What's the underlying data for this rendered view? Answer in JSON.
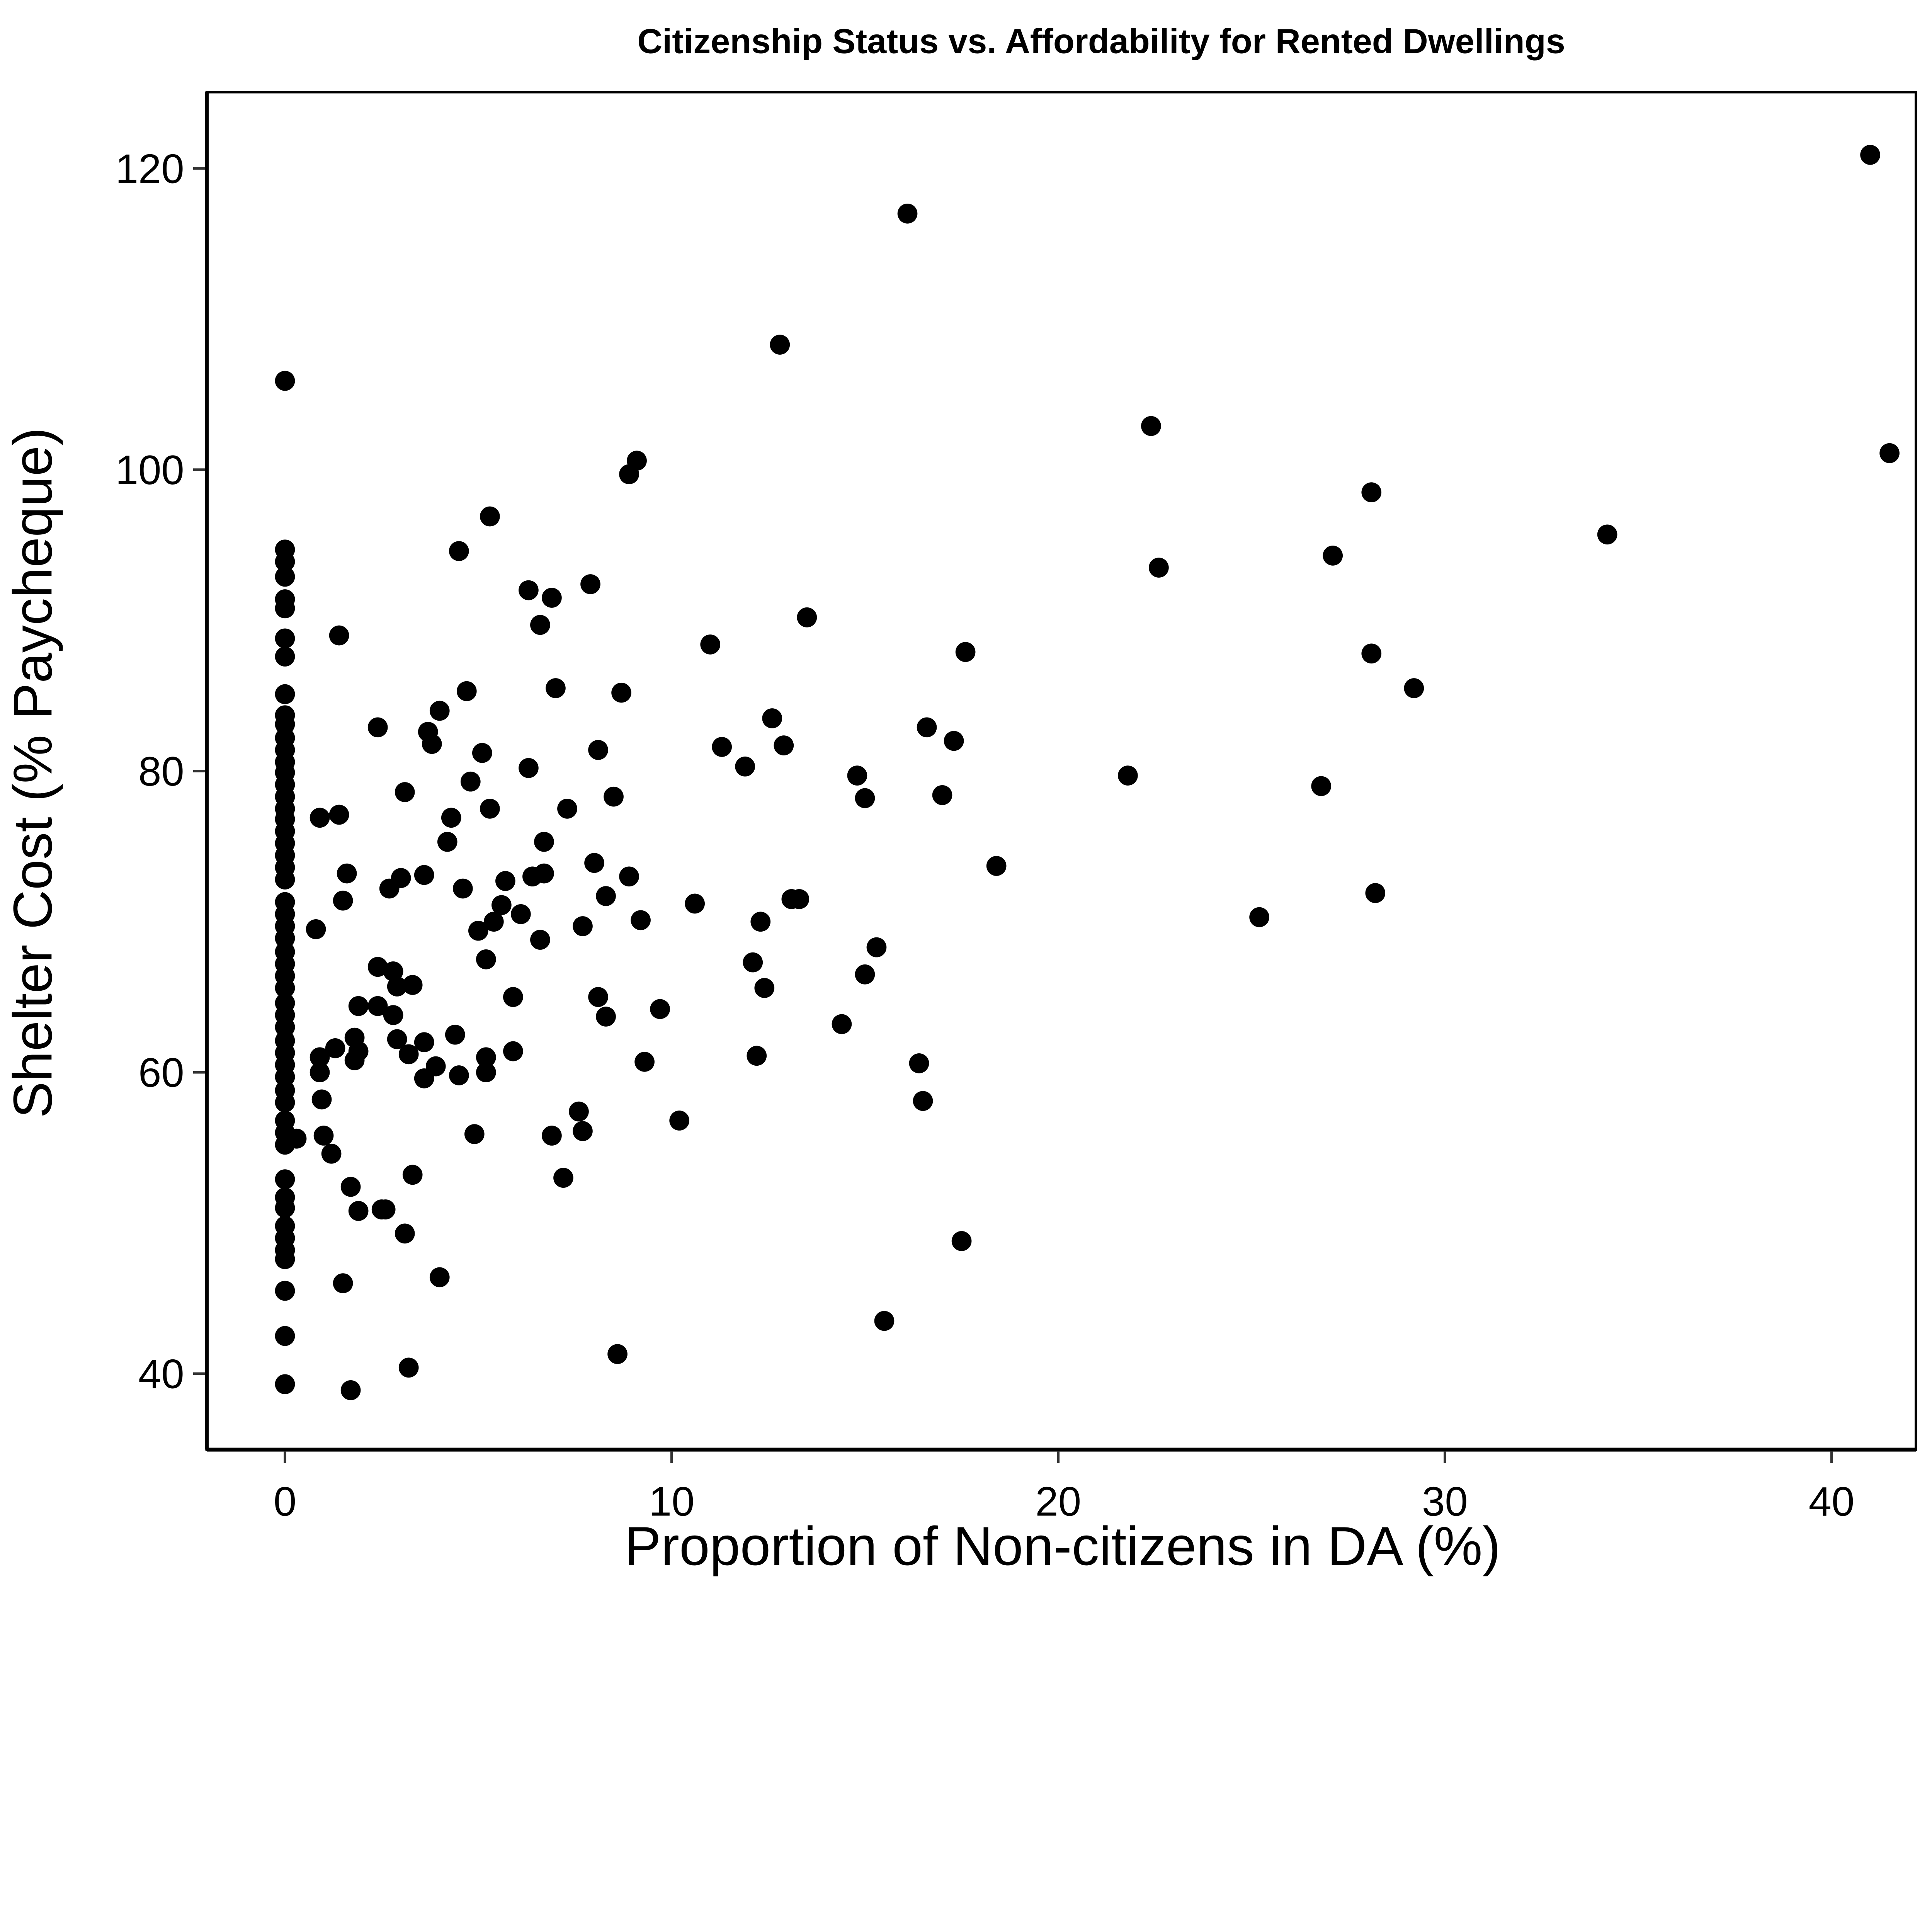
{
  "chart_data": {
    "type": "scatter",
    "title": "Citizenship Status vs. Affordability for Rented Dwellings",
    "xlabel": "Proportion of Non-citizens in DA (%)",
    "ylabel": "Shelter Cost (% Paycheque)",
    "xlim": [
      -2,
      42
    ],
    "ylim": [
      35,
      125
    ],
    "xticks": [
      0,
      10,
      20,
      30,
      40
    ],
    "yticks": [
      40,
      60,
      80,
      100,
      120
    ],
    "grid": false,
    "legend": "none",
    "marker_color": "#000000",
    "points": [
      [
        0,
        105.9
      ],
      [
        0,
        94.7
      ],
      [
        0,
        93.9
      ],
      [
        0,
        92.9
      ],
      [
        0,
        91.4
      ],
      [
        0,
        90.8
      ],
      [
        0,
        88.8
      ],
      [
        0,
        87.6
      ],
      [
        0,
        85.1
      ],
      [
        0,
        83.7
      ],
      [
        0,
        83.1
      ],
      [
        0,
        82.2
      ],
      [
        0,
        81.4
      ],
      [
        0,
        80.6
      ],
      [
        0,
        79.9
      ],
      [
        0,
        79.1
      ],
      [
        0,
        78.3
      ],
      [
        0,
        77.5
      ],
      [
        0,
        76.8
      ],
      [
        0,
        76.0
      ],
      [
        0,
        75.2
      ],
      [
        0,
        74.4
      ],
      [
        0,
        73.6
      ],
      [
        0,
        72.8
      ],
      [
        0,
        71.3
      ],
      [
        0,
        70.5
      ],
      [
        0,
        69.7
      ],
      [
        0,
        68.9
      ],
      [
        0,
        68.0
      ],
      [
        0,
        67.2
      ],
      [
        0,
        66.4
      ],
      [
        0,
        65.6
      ],
      [
        0,
        64.6
      ],
      [
        0,
        63.8
      ],
      [
        0,
        63.0
      ],
      [
        0,
        62.1
      ],
      [
        0,
        61.3
      ],
      [
        0,
        60.5
      ],
      [
        0,
        59.7
      ],
      [
        0,
        58.8
      ],
      [
        0,
        58.0
      ],
      [
        0,
        56.8
      ],
      [
        0,
        56.0
      ],
      [
        0,
        55.2
      ],
      [
        0,
        52.9
      ],
      [
        0,
        51.7
      ],
      [
        0,
        51.0
      ],
      [
        0,
        49.8
      ],
      [
        0,
        49.0
      ],
      [
        0,
        48.2
      ],
      [
        0,
        47.6
      ],
      [
        0,
        45.5
      ],
      [
        0,
        42.5
      ],
      [
        0,
        39.3
      ],
      [
        0.3,
        55.6
      ],
      [
        0.8,
        69.5
      ],
      [
        0.9,
        76.9
      ],
      [
        0.9,
        61.0
      ],
      [
        0.9,
        60.0
      ],
      [
        0.95,
        58.2
      ],
      [
        1.0,
        55.8
      ],
      [
        1.2,
        54.6
      ],
      [
        1.3,
        61.6
      ],
      [
        1.4,
        89.0
      ],
      [
        1.4,
        77.1
      ],
      [
        1.5,
        71.4
      ],
      [
        1.5,
        46.0
      ],
      [
        1.6,
        73.2
      ],
      [
        1.7,
        52.4
      ],
      [
        1.7,
        38.9
      ],
      [
        1.8,
        62.3
      ],
      [
        1.8,
        60.8
      ],
      [
        1.9,
        64.4
      ],
      [
        1.9,
        61.4
      ],
      [
        1.9,
        50.8
      ],
      [
        2.4,
        82.9
      ],
      [
        2.4,
        67.0
      ],
      [
        2.4,
        64.4
      ],
      [
        2.5,
        50.9
      ],
      [
        2.6,
        50.9
      ],
      [
        2.7,
        72.2
      ],
      [
        2.8,
        66.7
      ],
      [
        2.8,
        63.8
      ],
      [
        2.9,
        62.2
      ],
      [
        2.9,
        65.7
      ],
      [
        3.0,
        72.9
      ],
      [
        3.1,
        49.3
      ],
      [
        3.1,
        78.6
      ],
      [
        3.2,
        61.2
      ],
      [
        3.2,
        40.4
      ],
      [
        3.3,
        65.8
      ],
      [
        3.3,
        53.2
      ],
      [
        3.6,
        59.6
      ],
      [
        3.6,
        62.0
      ],
      [
        3.6,
        73.1
      ],
      [
        3.7,
        82.6
      ],
      [
        3.8,
        81.8
      ],
      [
        3.9,
        60.4
      ],
      [
        4.0,
        84.0
      ],
      [
        4.0,
        46.4
      ],
      [
        4.2,
        75.3
      ],
      [
        4.3,
        76.9
      ],
      [
        4.4,
        62.5
      ],
      [
        4.5,
        94.6
      ],
      [
        4.5,
        59.8
      ],
      [
        4.6,
        72.2
      ],
      [
        4.7,
        85.3
      ],
      [
        4.8,
        79.3
      ],
      [
        4.9,
        55.9
      ],
      [
        5.0,
        69.4
      ],
      [
        5.1,
        81.2
      ],
      [
        5.2,
        61.0
      ],
      [
        5.2,
        60.0
      ],
      [
        5.2,
        67.5
      ],
      [
        5.3,
        96.9
      ],
      [
        5.3,
        77.5
      ],
      [
        5.4,
        70.0
      ],
      [
        5.6,
        71.1
      ],
      [
        5.7,
        72.7
      ],
      [
        5.9,
        61.4
      ],
      [
        5.9,
        65.0
      ],
      [
        6.1,
        70.5
      ],
      [
        6.3,
        92.0
      ],
      [
        6.3,
        80.2
      ],
      [
        6.4,
        73.0
      ],
      [
        6.6,
        89.7
      ],
      [
        6.6,
        68.8
      ],
      [
        6.7,
        75.3
      ],
      [
        6.7,
        73.2
      ],
      [
        6.9,
        91.5
      ],
      [
        6.9,
        55.8
      ],
      [
        7.0,
        85.5
      ],
      [
        7.2,
        53.0
      ],
      [
        7.3,
        77.5
      ],
      [
        7.6,
        57.4
      ],
      [
        7.7,
        69.7
      ],
      [
        7.7,
        56.1
      ],
      [
        7.9,
        92.4
      ],
      [
        8.0,
        73.9
      ],
      [
        8.1,
        65.0
      ],
      [
        8.1,
        81.4
      ],
      [
        8.3,
        71.7
      ],
      [
        8.3,
        63.7
      ],
      [
        8.5,
        78.3
      ],
      [
        8.6,
        41.3
      ],
      [
        8.7,
        85.2
      ],
      [
        8.9,
        99.7
      ],
      [
        8.9,
        73.0
      ],
      [
        9.1,
        100.6
      ],
      [
        9.2,
        70.1
      ],
      [
        9.3,
        60.7
      ],
      [
        9.7,
        64.2
      ],
      [
        10.2,
        56.8
      ],
      [
        10.6,
        71.2
      ],
      [
        11.0,
        88.4
      ],
      [
        11.3,
        81.6
      ],
      [
        11.9,
        80.3
      ],
      [
        12.1,
        67.3
      ],
      [
        12.2,
        61.1
      ],
      [
        12.3,
        70.0
      ],
      [
        12.4,
        65.6
      ],
      [
        12.6,
        83.5
      ],
      [
        12.8,
        108.3
      ],
      [
        12.9,
        81.7
      ],
      [
        13.1,
        71.5
      ],
      [
        13.3,
        71.5
      ],
      [
        13.5,
        90.2
      ],
      [
        14.4,
        63.2
      ],
      [
        14.8,
        79.7
      ],
      [
        15.0,
        66.5
      ],
      [
        15.0,
        78.2
      ],
      [
        15.3,
        68.3
      ],
      [
        15.5,
        43.5
      ],
      [
        16.1,
        117.0
      ],
      [
        16.4,
        60.6
      ],
      [
        16.5,
        58.1
      ],
      [
        16.6,
        82.9
      ],
      [
        17.0,
        78.4
      ],
      [
        17.3,
        82.0
      ],
      [
        17.5,
        48.8
      ],
      [
        17.6,
        87.9
      ],
      [
        18.4,
        73.7
      ],
      [
        21.8,
        79.7
      ],
      [
        22.4,
        102.9
      ],
      [
        22.6,
        93.5
      ],
      [
        25.2,
        70.3
      ],
      [
        26.8,
        79.0
      ],
      [
        27.1,
        94.3
      ],
      [
        28.1,
        98.5
      ],
      [
        28.1,
        87.8
      ],
      [
        28.2,
        71.9
      ],
      [
        29.2,
        85.5
      ],
      [
        34.2,
        95.7
      ],
      [
        41.0,
        120.9
      ],
      [
        41.5,
        101.1
      ]
    ]
  }
}
